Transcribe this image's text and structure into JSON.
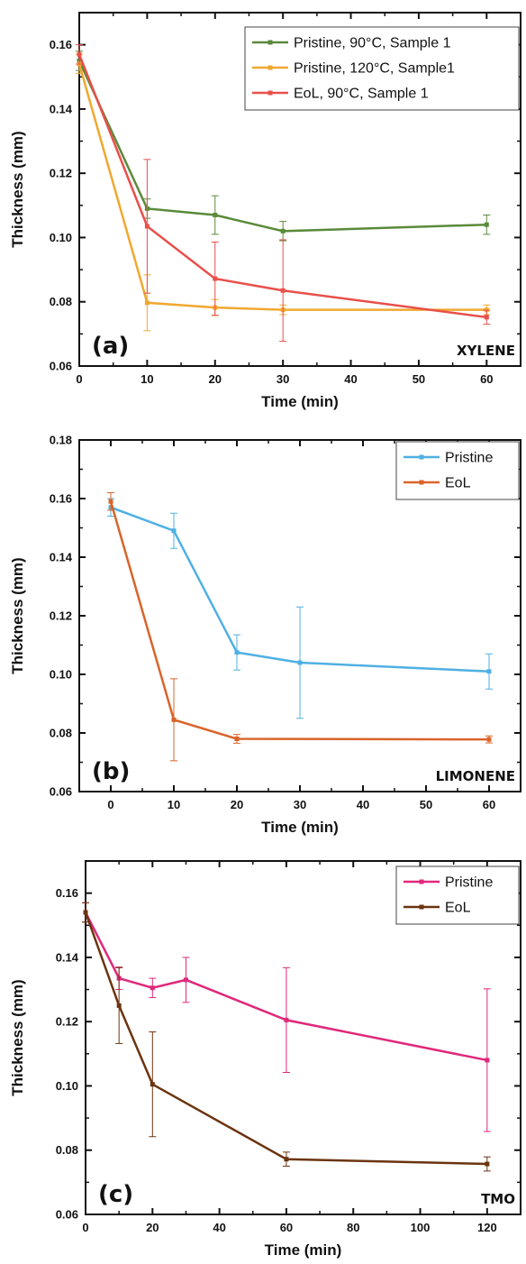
{
  "chart_data": [
    {
      "type": "line",
      "panel_label": "(a)",
      "annotation": "XYLENE",
      "xlabel": "Time (min)",
      "ylabel": "Thickness (mm)",
      "xlim": [
        0,
        65
      ],
      "ylim": [
        0.06,
        0.17
      ],
      "xticks": [
        "0",
        "10",
        "20",
        "30",
        "40",
        "50",
        "60"
      ],
      "xtick_values": [
        0,
        10,
        20,
        30,
        40,
        50,
        60
      ],
      "yticks": [
        "0.06",
        "0.08",
        "0.10",
        "0.12",
        "0.14",
        "0.16"
      ],
      "ytick_values": [
        0.06,
        0.08,
        0.1,
        0.12,
        0.14,
        0.16
      ],
      "legend_position": "top-right",
      "series": [
        {
          "name": "Pristine, 90°C, Sample 1",
          "color": "#5a8a3a",
          "x": [
            0,
            10,
            20,
            30,
            60
          ],
          "y": [
            0.155,
            0.109,
            0.107,
            0.102,
            0.104
          ],
          "err": [
            0.003,
            0.003,
            0.006,
            0.003,
            0.003
          ]
        },
        {
          "name": "Pristine, 120°C, Sample1",
          "color": "#f0a830",
          "x": [
            0,
            10,
            20,
            30,
            60
          ],
          "y": [
            0.154,
            0.0797,
            0.0782,
            0.0775,
            0.0775
          ],
          "err": [
            0.003,
            0.0087,
            0.0025,
            0.0015,
            0.0015
          ]
        },
        {
          "name": "EoL, 90°C, Sample 1",
          "color": "#e8504a",
          "x": [
            0,
            10,
            20,
            30,
            60
          ],
          "y": [
            0.157,
            0.1035,
            0.0872,
            0.0835,
            0.0752
          ],
          "err": [
            0.003,
            0.0208,
            0.0114,
            0.0158,
            0.0022
          ]
        }
      ]
    },
    {
      "type": "line",
      "panel_label": "(b)",
      "annotation": "LIMONENE",
      "xlabel": "Time (min)",
      "ylabel": "Thickness (mm)",
      "xlim": [
        -5,
        65
      ],
      "ylim": [
        0.06,
        0.18
      ],
      "xticks": [
        "0",
        "10",
        "20",
        "30",
        "40",
        "50",
        "60"
      ],
      "xtick_values": [
        0,
        10,
        20,
        30,
        40,
        50,
        60
      ],
      "yticks": [
        "0.06",
        "0.08",
        "0.10",
        "0.12",
        "0.14",
        "0.16",
        "0.18"
      ],
      "ytick_values": [
        0.06,
        0.08,
        0.1,
        0.12,
        0.14,
        0.16,
        0.18
      ],
      "legend_position": "top-right",
      "series": [
        {
          "name": "Pristine",
          "color": "#4fb0e3",
          "x": [
            0,
            10,
            20,
            30,
            60
          ],
          "y": [
            0.157,
            0.149,
            0.1075,
            0.104,
            0.101
          ],
          "err": [
            0.003,
            0.006,
            0.006,
            0.019,
            0.006
          ]
        },
        {
          "name": "EoL",
          "color": "#d9642a",
          "x": [
            0,
            10,
            20,
            60
          ],
          "y": [
            0.159,
            0.0845,
            0.078,
            0.0778
          ],
          "err": [
            0.003,
            0.014,
            0.0015,
            0.0012
          ]
        }
      ]
    },
    {
      "type": "line",
      "panel_label": "(c)",
      "annotation": "TMO",
      "xlabel": "Time (min)",
      "ylabel": "Thickness (mm)",
      "xlim": [
        0,
        130
      ],
      "ylim": [
        0.06,
        0.17
      ],
      "xticks": [
        "0",
        "20",
        "40",
        "60",
        "80",
        "100",
        "120"
      ],
      "xtick_values": [
        0,
        20,
        40,
        60,
        80,
        100,
        120
      ],
      "yticks": [
        "0.06",
        "0.08",
        "0.10",
        "0.12",
        "0.14",
        "0.16"
      ],
      "ytick_values": [
        0.06,
        0.08,
        0.1,
        0.12,
        0.14,
        0.16
      ],
      "legend_position": "top-right",
      "series": [
        {
          "name": "Pristine",
          "color": "#e0287a",
          "x": [
            0,
            10,
            20,
            30,
            60,
            120
          ],
          "y": [
            0.154,
            0.1335,
            0.1305,
            0.133,
            0.1205,
            0.108
          ],
          "err": [
            0.003,
            0.0035,
            0.003,
            0.007,
            0.0163,
            0.0222
          ]
        },
        {
          "name": "EoL",
          "color": "#6b3410",
          "x": [
            0,
            10,
            20,
            60,
            120
          ],
          "y": [
            0.154,
            0.125,
            0.1005,
            0.0772,
            0.0757
          ],
          "err": [
            0.003,
            0.0118,
            0.0163,
            0.0022,
            0.0022
          ]
        }
      ]
    }
  ]
}
